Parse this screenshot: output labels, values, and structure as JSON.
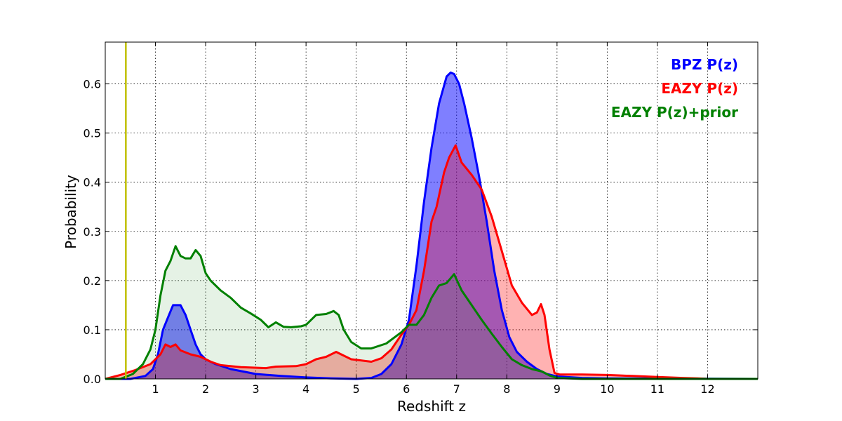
{
  "chart_data": {
    "type": "area",
    "xlabel": "Redshift z",
    "ylabel": "Probability",
    "xlim": [
      0,
      13
    ],
    "ylim": [
      0,
      0.685
    ],
    "xticks": [
      1,
      2,
      3,
      4,
      5,
      6,
      7,
      8,
      9,
      10,
      11,
      12
    ],
    "yticks": [
      0.0,
      0.1,
      0.2,
      0.3,
      0.4,
      0.5,
      0.6
    ],
    "ytick_labels": [
      "0.0",
      "0.1",
      "0.2",
      "0.3",
      "0.4",
      "0.5",
      "0.6"
    ],
    "grid": true,
    "legend_position": "top-right",
    "vline": {
      "x": 0.41,
      "color": "#bfbf00"
    },
    "series": [
      {
        "name": "BPZ P(z)",
        "color": "#0000ff",
        "fill": "#0000ff",
        "fill_opacity": 0.5,
        "points": [
          [
            0.0,
            0.0
          ],
          [
            0.5,
            0.0
          ],
          [
            0.8,
            0.006
          ],
          [
            0.95,
            0.02
          ],
          [
            1.05,
            0.05
          ],
          [
            1.15,
            0.1
          ],
          [
            1.25,
            0.125
          ],
          [
            1.35,
            0.15
          ],
          [
            1.5,
            0.15
          ],
          [
            1.6,
            0.13
          ],
          [
            1.7,
            0.1
          ],
          [
            1.8,
            0.07
          ],
          [
            1.9,
            0.05
          ],
          [
            2.0,
            0.04
          ],
          [
            2.2,
            0.03
          ],
          [
            2.5,
            0.02
          ],
          [
            3.0,
            0.01
          ],
          [
            3.5,
            0.006
          ],
          [
            4.0,
            0.003
          ],
          [
            4.5,
            0.001
          ],
          [
            5.0,
            0.0
          ],
          [
            5.3,
            0.002
          ],
          [
            5.5,
            0.01
          ],
          [
            5.7,
            0.03
          ],
          [
            5.9,
            0.07
          ],
          [
            6.05,
            0.12
          ],
          [
            6.2,
            0.23
          ],
          [
            6.35,
            0.36
          ],
          [
            6.5,
            0.47
          ],
          [
            6.65,
            0.56
          ],
          [
            6.8,
            0.615
          ],
          [
            6.88,
            0.623
          ],
          [
            6.95,
            0.62
          ],
          [
            7.05,
            0.6
          ],
          [
            7.15,
            0.56
          ],
          [
            7.3,
            0.49
          ],
          [
            7.45,
            0.41
          ],
          [
            7.6,
            0.32
          ],
          [
            7.75,
            0.22
          ],
          [
            7.9,
            0.14
          ],
          [
            8.05,
            0.085
          ],
          [
            8.2,
            0.055
          ],
          [
            8.4,
            0.035
          ],
          [
            8.6,
            0.02
          ],
          [
            8.8,
            0.01
          ],
          [
            9.0,
            0.005
          ],
          [
            9.5,
            0.002
          ],
          [
            10.0,
            0.001
          ],
          [
            13.0,
            0.0
          ]
        ]
      },
      {
        "name": "EAZY P(z)",
        "color": "#ff0000",
        "fill": "#ff0000",
        "fill_opacity": 0.3,
        "points": [
          [
            0.0,
            0.0
          ],
          [
            0.3,
            0.008
          ],
          [
            0.6,
            0.018
          ],
          [
            0.9,
            0.03
          ],
          [
            1.1,
            0.05
          ],
          [
            1.2,
            0.07
          ],
          [
            1.3,
            0.065
          ],
          [
            1.4,
            0.07
          ],
          [
            1.5,
            0.058
          ],
          [
            1.7,
            0.05
          ],
          [
            1.9,
            0.045
          ],
          [
            2.1,
            0.035
          ],
          [
            2.3,
            0.028
          ],
          [
            2.7,
            0.024
          ],
          [
            3.2,
            0.022
          ],
          [
            3.4,
            0.025
          ],
          [
            3.8,
            0.026
          ],
          [
            4.0,
            0.03
          ],
          [
            4.2,
            0.04
          ],
          [
            4.4,
            0.045
          ],
          [
            4.6,
            0.055
          ],
          [
            4.7,
            0.05
          ],
          [
            4.9,
            0.04
          ],
          [
            5.3,
            0.035
          ],
          [
            5.5,
            0.042
          ],
          [
            5.7,
            0.06
          ],
          [
            5.9,
            0.09
          ],
          [
            6.05,
            0.11
          ],
          [
            6.2,
            0.14
          ],
          [
            6.35,
            0.22
          ],
          [
            6.5,
            0.32
          ],
          [
            6.6,
            0.35
          ],
          [
            6.75,
            0.42
          ],
          [
            6.85,
            0.45
          ],
          [
            6.98,
            0.475
          ],
          [
            7.1,
            0.44
          ],
          [
            7.3,
            0.415
          ],
          [
            7.5,
            0.385
          ],
          [
            7.7,
            0.33
          ],
          [
            7.9,
            0.26
          ],
          [
            8.1,
            0.19
          ],
          [
            8.3,
            0.155
          ],
          [
            8.5,
            0.13
          ],
          [
            8.6,
            0.135
          ],
          [
            8.68,
            0.152
          ],
          [
            8.75,
            0.13
          ],
          [
            8.85,
            0.06
          ],
          [
            8.95,
            0.012
          ],
          [
            9.05,
            0.009
          ],
          [
            9.5,
            0.009
          ],
          [
            10.0,
            0.008
          ],
          [
            10.5,
            0.006
          ],
          [
            11.0,
            0.004
          ],
          [
            11.5,
            0.002
          ],
          [
            11.8,
            0.001
          ],
          [
            12.0,
            0.0
          ],
          [
            13.0,
            0.0
          ]
        ]
      },
      {
        "name": "EAZY P(z)+prior",
        "color": "#008000",
        "fill": "#008000",
        "fill_opacity": 0.1,
        "points": [
          [
            0.0,
            0.0
          ],
          [
            0.3,
            0.0
          ],
          [
            0.55,
            0.01
          ],
          [
            0.75,
            0.03
          ],
          [
            0.9,
            0.06
          ],
          [
            1.0,
            0.1
          ],
          [
            1.1,
            0.17
          ],
          [
            1.2,
            0.22
          ],
          [
            1.3,
            0.24
          ],
          [
            1.4,
            0.27
          ],
          [
            1.5,
            0.25
          ],
          [
            1.6,
            0.245
          ],
          [
            1.7,
            0.245
          ],
          [
            1.8,
            0.262
          ],
          [
            1.9,
            0.25
          ],
          [
            2.0,
            0.215
          ],
          [
            2.1,
            0.2
          ],
          [
            2.3,
            0.18
          ],
          [
            2.5,
            0.165
          ],
          [
            2.7,
            0.145
          ],
          [
            2.9,
            0.133
          ],
          [
            3.1,
            0.12
          ],
          [
            3.25,
            0.105
          ],
          [
            3.4,
            0.115
          ],
          [
            3.55,
            0.106
          ],
          [
            3.7,
            0.105
          ],
          [
            3.9,
            0.107
          ],
          [
            4.0,
            0.11
          ],
          [
            4.2,
            0.13
          ],
          [
            4.4,
            0.132
          ],
          [
            4.55,
            0.138
          ],
          [
            4.65,
            0.13
          ],
          [
            4.75,
            0.1
          ],
          [
            4.9,
            0.075
          ],
          [
            5.1,
            0.062
          ],
          [
            5.3,
            0.062
          ],
          [
            5.6,
            0.072
          ],
          [
            5.9,
            0.095
          ],
          [
            6.05,
            0.11
          ],
          [
            6.2,
            0.11
          ],
          [
            6.35,
            0.13
          ],
          [
            6.5,
            0.165
          ],
          [
            6.65,
            0.19
          ],
          [
            6.8,
            0.195
          ],
          [
            6.95,
            0.213
          ],
          [
            7.1,
            0.18
          ],
          [
            7.3,
            0.15
          ],
          [
            7.5,
            0.12
          ],
          [
            7.7,
            0.092
          ],
          [
            7.9,
            0.065
          ],
          [
            8.1,
            0.04
          ],
          [
            8.3,
            0.028
          ],
          [
            8.5,
            0.02
          ],
          [
            8.7,
            0.015
          ],
          [
            8.85,
            0.007
          ],
          [
            9.0,
            0.002
          ],
          [
            9.5,
            0.0
          ],
          [
            13.0,
            0.0
          ]
        ]
      }
    ]
  }
}
